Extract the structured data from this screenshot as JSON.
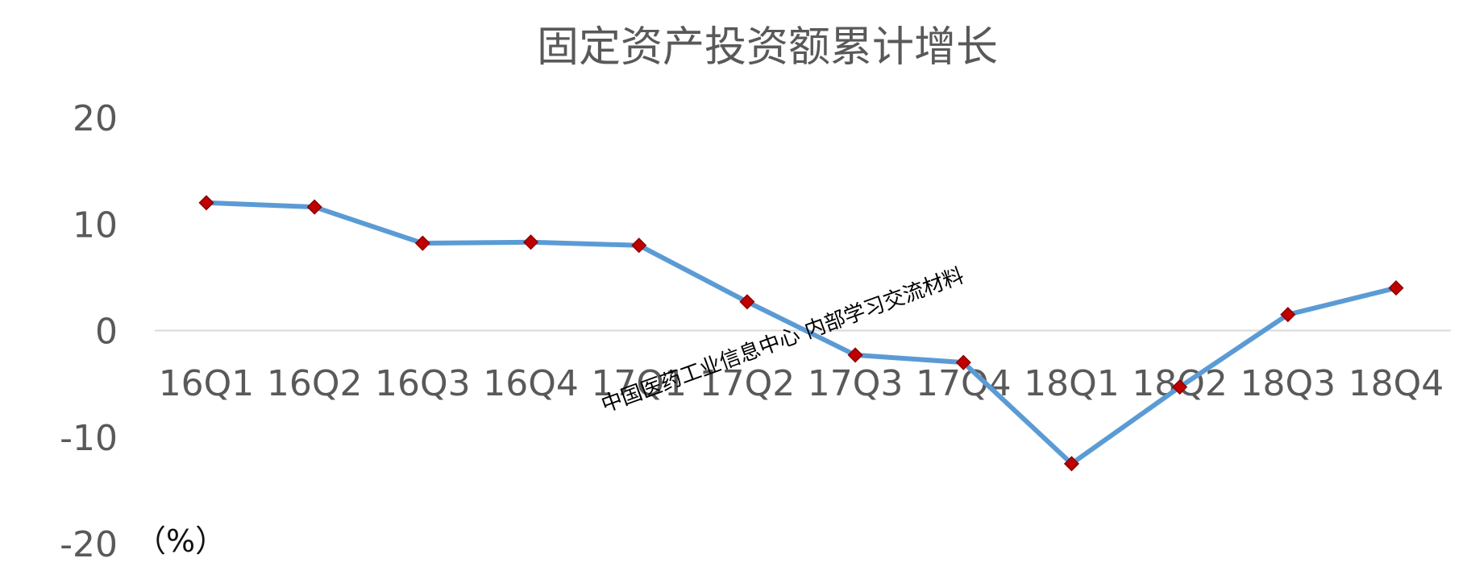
{
  "chart_data": {
    "type": "line",
    "title": "固定资产投资额累计增长",
    "unit_label": "（%）",
    "categories": [
      "16Q1",
      "16Q2",
      "16Q3",
      "16Q4",
      "17Q1",
      "17Q2",
      "17Q3",
      "17Q4",
      "18Q1",
      "18Q2",
      "18Q3",
      "18Q4"
    ],
    "series": [
      {
        "values": [
          12.0,
          11.6,
          8.2,
          8.3,
          8.0,
          2.7,
          -2.3,
          -3.0,
          -12.5,
          -5.3,
          1.5,
          4.0
        ]
      }
    ],
    "ylim": [
      -20,
      20
    ],
    "yticks": [
      20,
      10,
      0,
      -10,
      -20
    ],
    "grid": false,
    "legend": false,
    "colors": {
      "line": "#5b9bd5",
      "marker": "#c00000",
      "axis": "#d9d9d9",
      "text": "#595959"
    }
  },
  "watermark": {
    "text": "中国医药工业信息中心 内部学习交流材料"
  }
}
